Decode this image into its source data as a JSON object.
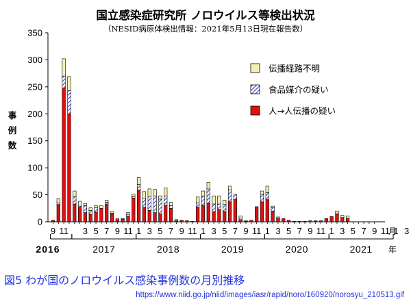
{
  "title": "国立感染症研究所  ノロウイルス等検出状況",
  "subtitle": "（NESID病原体検出情報：2021年5月13日現在報告数）",
  "caption": "図5  わが国のノロウイルス感染事例数の月別推移",
  "source_url": "https://www.niid.go.jp/niid/images/iasr/rapid/noro/160920/norosyu_210513.gif",
  "colors": {
    "person": "#dd1111",
    "food": "#6666cc",
    "unknown": "#f5f0b0",
    "food_hatch": "#3344aa"
  },
  "chart_data": {
    "type": "bar",
    "stacked": true,
    "ylabel": [
      "事",
      "例",
      "数"
    ],
    "ylim": [
      0,
      350
    ],
    "yticks": [
      0,
      50,
      100,
      150,
      200,
      250,
      300,
      350
    ],
    "x_unit_label": "月",
    "year_unit_label": "年",
    "month_tick_labels": [
      {
        "i": 0,
        "label": "9"
      },
      {
        "i": 2,
        "label": "11"
      },
      {
        "i": 6,
        "label": "3"
      },
      {
        "i": 8,
        "label": "5"
      },
      {
        "i": 10,
        "label": "7"
      },
      {
        "i": 12,
        "label": "9"
      },
      {
        "i": 14,
        "label": "11"
      },
      {
        "i": 16,
        "label": "1"
      },
      {
        "i": 18,
        "label": "3"
      },
      {
        "i": 20,
        "label": "5"
      },
      {
        "i": 22,
        "label": "7"
      },
      {
        "i": 24,
        "label": "9"
      },
      {
        "i": 26,
        "label": "11"
      },
      {
        "i": 28,
        "label": "1"
      },
      {
        "i": 30,
        "label": "3"
      },
      {
        "i": 32,
        "label": "5"
      },
      {
        "i": 34,
        "label": "7"
      },
      {
        "i": 36,
        "label": "9"
      },
      {
        "i": 38,
        "label": "11"
      },
      {
        "i": 40,
        "label": "1"
      },
      {
        "i": 42,
        "label": "3"
      },
      {
        "i": 44,
        "label": "5"
      },
      {
        "i": 46,
        "label": "7"
      },
      {
        "i": 48,
        "label": "9"
      },
      {
        "i": 50,
        "label": "11"
      },
      {
        "i": 52,
        "label": "1"
      },
      {
        "i": 54,
        "label": "3"
      },
      {
        "i": 56,
        "label": "5"
      },
      {
        "i": 58,
        "label": "7"
      },
      {
        "i": 60,
        "label": "9"
      },
      {
        "i": 62,
        "label": "11"
      },
      {
        "i": 64,
        "label": "1"
      },
      {
        "i": 66,
        "label": "3"
      },
      {
        "i": 68,
        "label": "5"
      },
      {
        "i": 70,
        "label": "7"
      }
    ],
    "years": [
      {
        "label": "2016",
        "start": 0,
        "end": 3,
        "bold": true
      },
      {
        "label": "2017",
        "start": 4,
        "end": 15
      },
      {
        "label": "2018",
        "start": 16,
        "end": 27
      },
      {
        "label": "2019",
        "start": 28,
        "end": 39
      },
      {
        "label": "2020",
        "start": 40,
        "end": 51
      },
      {
        "label": "2021",
        "start": 52,
        "end": 63
      }
    ],
    "legend_position": "top-right",
    "series": [
      {
        "name": "人→人伝播の疑い",
        "key": "person",
        "values": [
          3,
          32,
          248,
          200,
          33,
          26,
          17,
          14,
          18,
          25,
          32,
          14,
          4,
          5,
          11,
          44,
          59,
          27,
          21,
          17,
          15,
          31,
          25,
          2,
          3,
          2,
          1,
          27,
          30,
          34,
          19,
          23,
          19,
          37,
          41,
          4,
          1,
          3,
          28,
          37,
          41,
          20,
          7,
          6,
          3,
          1,
          1,
          1,
          2,
          2,
          2,
          6,
          10,
          15,
          8,
          6,
          0,
          0,
          0,
          0,
          0
        ]
      },
      {
        "name": "食品媒介の疑い",
        "key": "food",
        "values": [
          0,
          3,
          22,
          43,
          14,
          3,
          13,
          7,
          8,
          0,
          4,
          2,
          0,
          0,
          3,
          3,
          10,
          16,
          25,
          31,
          27,
          17,
          5,
          0,
          0,
          0,
          0,
          8,
          18,
          27,
          14,
          10,
          13,
          22,
          10,
          3,
          0,
          0,
          0,
          14,
          13,
          6,
          0,
          0,
          0,
          0,
          0,
          0,
          0,
          0,
          0,
          0,
          0,
          0,
          0,
          0,
          0,
          0,
          0,
          0,
          0
        ]
      },
      {
        "name": "伝播経路不明",
        "key": "unknown",
        "values": [
          0,
          8,
          32,
          26,
          10,
          9,
          4,
          5,
          4,
          5,
          4,
          3,
          2,
          1,
          3,
          4,
          13,
          13,
          15,
          12,
          6,
          15,
          6,
          2,
          0,
          0,
          0,
          11,
          9,
          12,
          15,
          15,
          8,
          7,
          0,
          4,
          1,
          0,
          0,
          6,
          12,
          3,
          2,
          0,
          0,
          0,
          0,
          0,
          0,
          0,
          0,
          0,
          0,
          5,
          4,
          5,
          0,
          0,
          0,
          0,
          0
        ]
      }
    ],
    "legend_order": [
      "unknown",
      "food",
      "person"
    ]
  }
}
